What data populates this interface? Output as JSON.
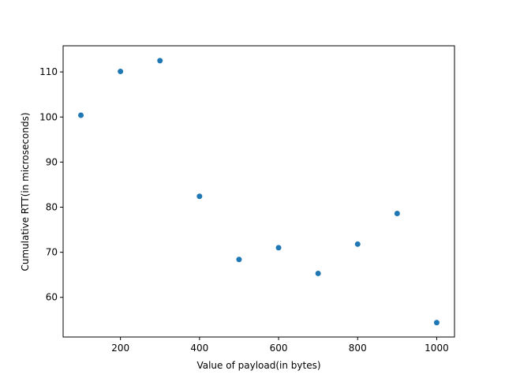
{
  "chart_data": {
    "type": "scatter",
    "title": "",
    "xlabel": "Value of payload(in bytes)",
    "ylabel": "Cumulative RTT(in microseconds)",
    "xlim": [
      55,
      1045
    ],
    "ylim": [
      51.2,
      115.8
    ],
    "xticks": [
      200,
      400,
      600,
      800,
      1000
    ],
    "xtick_labels": [
      "200",
      "400",
      "600",
      "800",
      "1000"
    ],
    "yticks": [
      60,
      70,
      80,
      90,
      100,
      110
    ],
    "ytick_labels": [
      "60",
      "70",
      "80",
      "90",
      "100",
      "110"
    ],
    "grid": false,
    "legend": "none",
    "marker_color": "#1f77b4",
    "series": [
      {
        "x": [
          100,
          200,
          300,
          400,
          500,
          600,
          700,
          800,
          900,
          1000
        ],
        "y": [
          100.4,
          110.1,
          112.5,
          82.4,
          68.4,
          71.0,
          65.3,
          71.8,
          78.6,
          54.4
        ]
      }
    ]
  }
}
